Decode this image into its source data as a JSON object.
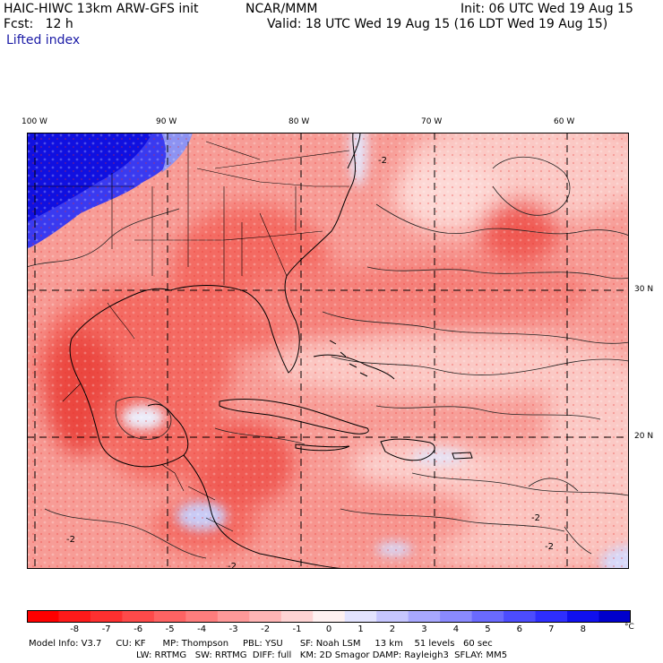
{
  "header": {
    "model": "HAIC-HIWC 13km ARW-GFS init",
    "org": "NCAR/MMM",
    "init": "Init: 06 UTC Wed 19 Aug 15",
    "fcst": "Fcst:   12 h",
    "valid": "Valid: 18 UTC Wed 19 Aug 15 (16 LDT Wed 19 Aug 15)",
    "field": "Lifted index"
  },
  "map": {
    "lon_labels": [
      "100 W",
      "90 W",
      "80 W",
      "70 W",
      "60 W"
    ],
    "lat_labels": [
      "30 N",
      "20 N"
    ],
    "contour_labels": [
      "-2",
      "-2",
      "-2",
      "-2",
      "-2"
    ],
    "colors": {
      "deep_red": "#e8302c",
      "red": "#f46a62",
      "pink": "#f9a9a3",
      "light_pink": "#fdd9d6",
      "light_blue": "#c9ccf7",
      "deep_blue": "#1010e0"
    }
  },
  "colorbar": {
    "labels": [
      "-8",
      "-7",
      "-6",
      "-5",
      "-4",
      "-3",
      "-2",
      "-1",
      "0",
      "1",
      "2",
      "3",
      "4",
      "5",
      "6",
      "7",
      "8"
    ],
    "unit": "°C",
    "colors": [
      "#ff0000",
      "#ff1a1a",
      "#ff3030",
      "#ff4a4a",
      "#ff6363",
      "#ff7d7d",
      "#ff9999",
      "#ffb5b5",
      "#ffd4d4",
      "#fff1f1",
      "#e3e3ff",
      "#c6c6ff",
      "#a8a8ff",
      "#8a8aff",
      "#6a6aff",
      "#4c4cff",
      "#2e2eff",
      "#1010ee",
      "#0000cc"
    ]
  },
  "footer": {
    "line1": "Model Info: V3.7     CU: KF      MP: Thompson     PBL: YSU      SF: Noah LSM     13 km    51 levels   60 sec",
    "line2": "LW: RRTMG   SW: RRTMG  DIFF: full   KM: 2D Smagor DAMP: Rayleigh3  SFLAY: MM5"
  }
}
